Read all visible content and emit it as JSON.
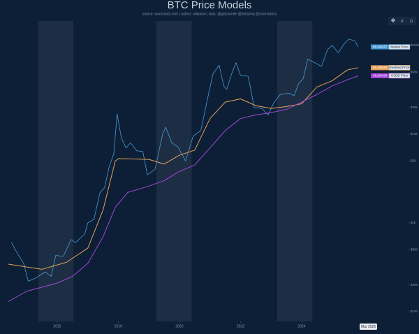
{
  "chart_data": {
    "type": "line",
    "title": "BTC Price Models",
    "subtitle": "source: woocharts.com | author: willywoo | data: @glassnode @bitstamp @coinmetrics",
    "log_scale": true,
    "grid": false,
    "legend": "right",
    "crosshair_label": "Mar 2026",
    "xlim": [
      2014.4,
      2027.5
    ],
    "xticks": [
      2016,
      2018,
      2020,
      2022,
      2024
    ],
    "ylim": [
      77.6,
      188800
    ],
    "yticks": [
      {
        "value": 100,
        "label": "$100"
      },
      {
        "value": 200,
        "label": "$200"
      },
      {
        "value": 500,
        "label": "$500"
      },
      {
        "value": 1000,
        "label": "$1k"
      },
      {
        "value": 5000,
        "label": "$5k"
      },
      {
        "value": 10000,
        "label": "$10k"
      },
      {
        "value": 20000,
        "label": "$20k"
      },
      {
        "value": 50000,
        "label": "$50k"
      },
      {
        "value": 100000,
        "label": "$100k"
      }
    ],
    "bands": [
      [
        2015.38,
        2016.53
      ],
      [
        2019.25,
        2020.4
      ],
      [
        2023.2,
        2024.35
      ]
    ],
    "series": [
      {
        "name": "Market Price",
        "color": "#4a9ad6",
        "end_label": "96,345.57",
        "x": [
          2014.5,
          2014.7,
          2014.9,
          2015.05,
          2015.3,
          2015.6,
          2015.8,
          2015.95,
          2016.2,
          2016.45,
          2016.6,
          2016.9,
          2017.0,
          2017.2,
          2017.4,
          2017.55,
          2017.7,
          2017.85,
          2017.96,
          2018.1,
          2018.25,
          2018.4,
          2018.6,
          2018.8,
          2018.95,
          2019.2,
          2019.45,
          2019.55,
          2019.75,
          2019.95,
          2020.2,
          2020.45,
          2020.7,
          2020.95,
          2021.1,
          2021.3,
          2021.45,
          2021.55,
          2021.7,
          2021.85,
          2022.0,
          2022.25,
          2022.45,
          2022.7,
          2022.9,
          2023.1,
          2023.3,
          2023.6,
          2023.75,
          2023.9,
          2024.05,
          2024.2,
          2024.5,
          2024.65,
          2024.85,
          2025.0,
          2025.2,
          2025.4,
          2025.55,
          2025.75,
          2025.85
        ],
        "values": [
          600,
          450,
          350,
          220,
          240,
          280,
          250,
          430,
          420,
          650,
          600,
          750,
          1000,
          1100,
          2200,
          2500,
          4300,
          6000,
          17000,
          9000,
          7000,
          8000,
          6500,
          6400,
          3500,
          4000,
          10000,
          12000,
          8000,
          7200,
          5000,
          9500,
          11000,
          28000,
          48000,
          60000,
          35000,
          32000,
          47000,
          64000,
          46000,
          45000,
          20000,
          19500,
          16500,
          23000,
          28000,
          29000,
          27000,
          37000,
          42000,
          70000,
          62000,
          58000,
          90000,
          100000,
          83000,
          105000,
          118000,
          112000,
          96345.57
        ]
      },
      {
        "name": "Realized Price",
        "color": "#e8a25a",
        "end_label": "56,109.96",
        "x": [
          2014.4,
          2015.5,
          2016.3,
          2017.0,
          2017.5,
          2017.9,
          2018.0,
          2019.0,
          2019.5,
          2020.0,
          2020.5,
          2021.0,
          2021.5,
          2022.0,
          2022.5,
          2023.0,
          2023.5,
          2024.0,
          2024.5,
          2025.0,
          2025.5,
          2025.85
        ],
        "values": [
          343,
          300,
          360,
          520,
          1400,
          5000,
          5300,
          5200,
          4600,
          5800,
          6600,
          15000,
          23000,
          25000,
          21000,
          19500,
          20500,
          22000,
          34000,
          40000,
          53000,
          56109.96
        ]
      },
      {
        "name": "CVDD Floor",
        "color": "#a347d8",
        "end_label": "45,504.06",
        "x": [
          2014.4,
          2015.0,
          2016.0,
          2016.5,
          2017.0,
          2017.5,
          2017.9,
          2018.3,
          2019.0,
          2019.5,
          2020.0,
          2020.5,
          2021.0,
          2021.5,
          2022.0,
          2022.5,
          2023.0,
          2023.5,
          2024.0,
          2024.5,
          2025.0,
          2025.5,
          2025.85
        ],
        "values": [
          130,
          170,
          210,
          250,
          350,
          700,
          1500,
          2200,
          2600,
          3000,
          3800,
          4500,
          7000,
          11000,
          15000,
          16500,
          17500,
          19000,
          23000,
          28000,
          35000,
          41000,
          45504.06
        ]
      }
    ]
  }
}
